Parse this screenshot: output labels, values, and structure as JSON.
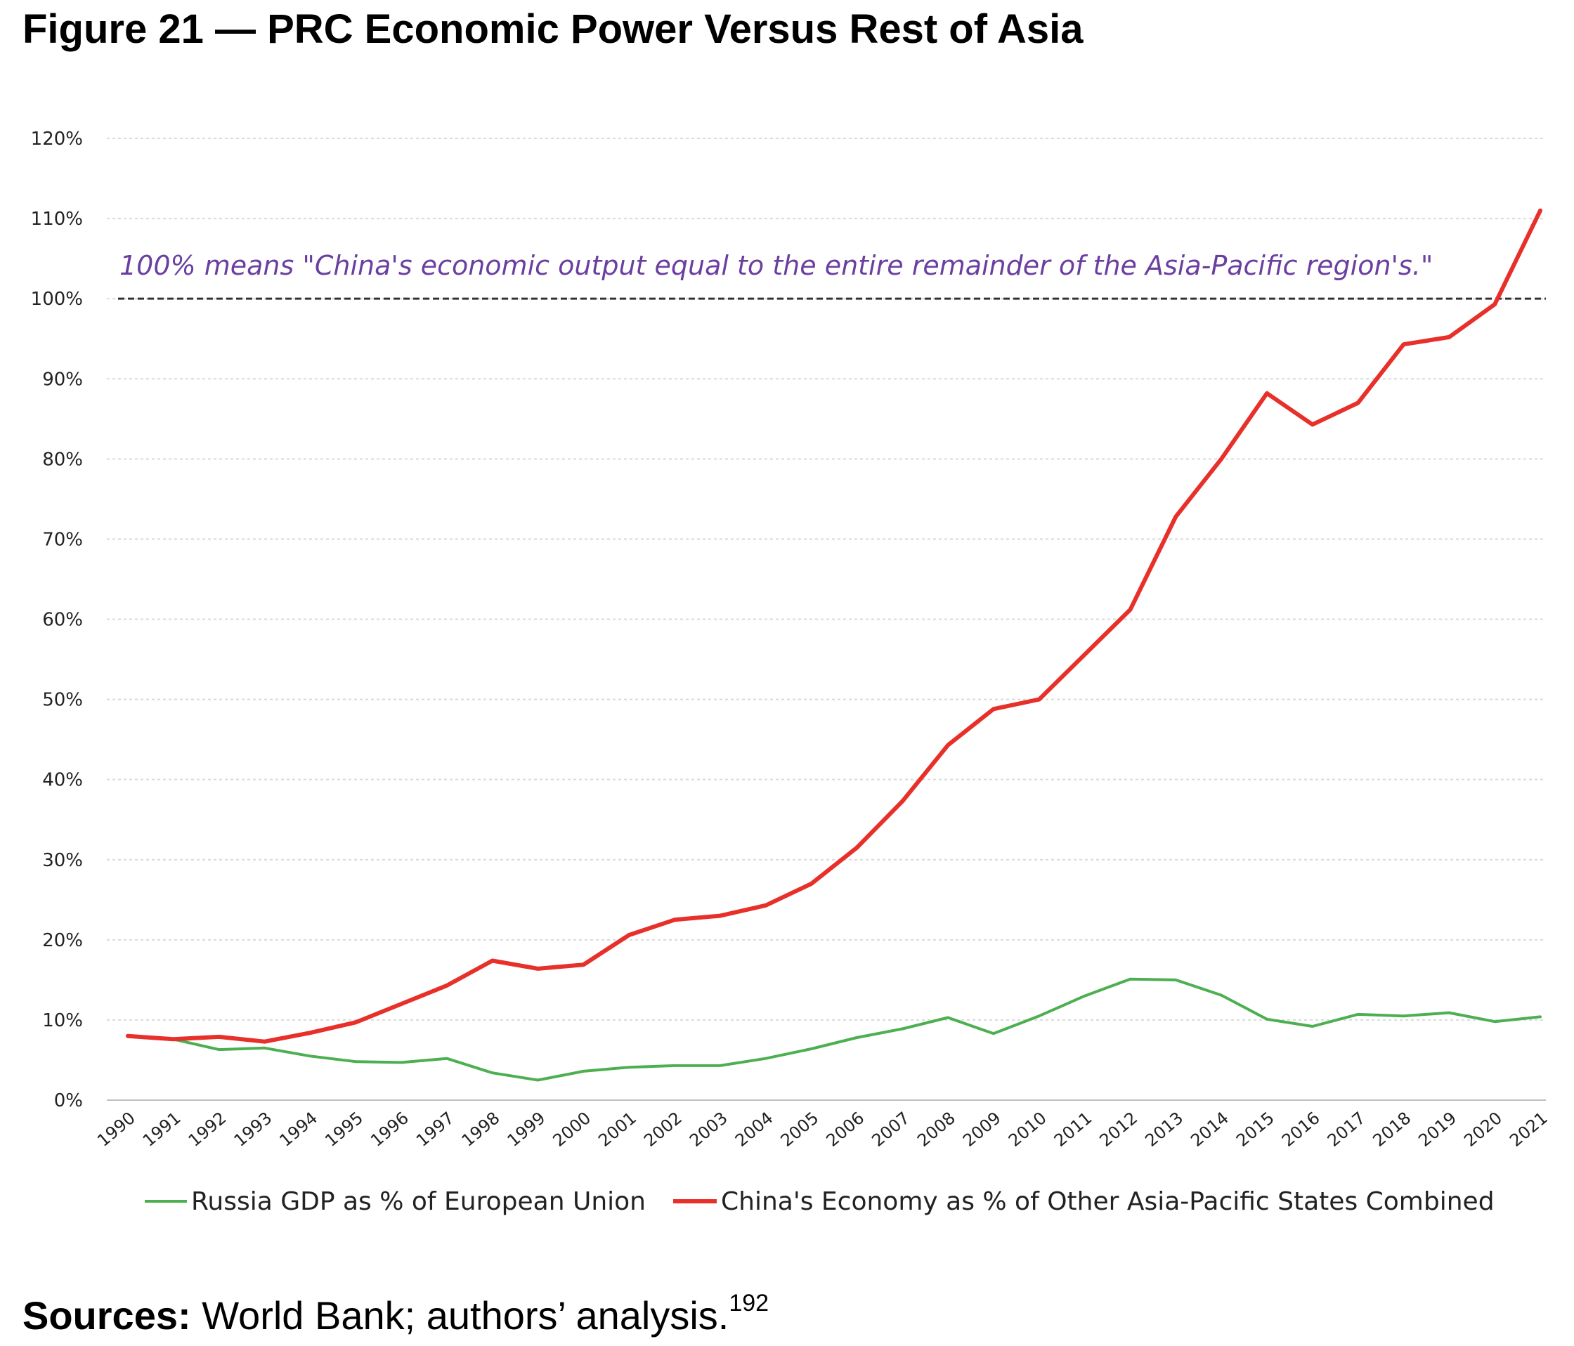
{
  "figure_title": "Figure 21 — PRC Economic Power Versus Rest of Asia",
  "colors": {
    "russia": "#4caf50",
    "china": "#e8302a",
    "annotation": "#6b3fa0",
    "reference_line": "#333333",
    "grid": "#d9d9d9"
  },
  "chart_data": {
    "type": "line",
    "title": "",
    "xlabel": "",
    "ylabel": "",
    "ylim": [
      0,
      120
    ],
    "y_ticks": [
      0,
      10,
      20,
      30,
      40,
      50,
      60,
      70,
      80,
      90,
      100,
      110,
      120
    ],
    "y_tick_labels": [
      "0%",
      "10%",
      "20%",
      "30%",
      "40%",
      "50%",
      "60%",
      "70%",
      "80%",
      "90%",
      "100%",
      "110%",
      "120%"
    ],
    "x": [
      "1990",
      "1991",
      "1992",
      "1993",
      "1994",
      "1995",
      "1996",
      "1997",
      "1998",
      "1999",
      "2000",
      "2001",
      "2002",
      "2003",
      "2004",
      "2005",
      "2006",
      "2007",
      "2008",
      "2009",
      "2010",
      "2011",
      "2012",
      "2013",
      "2014",
      "2015",
      "2016",
      "2017",
      "2018",
      "2019",
      "2020",
      "2021"
    ],
    "grid": "horizontal dotted",
    "legend_position": "bottom",
    "reference_line": {
      "y": 100,
      "style": "dashed"
    },
    "annotation": "100%  means \"China's economic output equal to the entire remainder of the Asia-Pacific region's.\"",
    "series": [
      {
        "name": "Russia GDP as % of European Union",
        "color_key": "russia",
        "values": [
          8.0,
          7.6,
          6.3,
          6.5,
          5.5,
          4.8,
          4.7,
          5.2,
          3.4,
          2.5,
          3.6,
          4.1,
          4.3,
          4.3,
          5.2,
          6.4,
          7.8,
          8.9,
          10.3,
          8.3,
          10.5,
          13.0,
          15.1,
          15.0,
          13.1,
          10.1,
          9.2,
          10.7,
          10.5,
          10.9,
          9.8,
          10.4
        ]
      },
      {
        "name": "China's Economy as % of Other Asia-Pacific States Combined",
        "color_key": "china",
        "values": [
          8.0,
          7.6,
          7.9,
          7.3,
          8.4,
          9.7,
          12.0,
          14.3,
          17.4,
          16.4,
          16.9,
          20.6,
          22.5,
          23.0,
          24.3,
          27.0,
          31.5,
          37.3,
          44.3,
          48.8,
          50.0,
          55.6,
          61.2,
          72.8,
          80.0,
          88.2,
          84.3,
          87.0,
          94.3,
          95.2,
          99.3,
          111.0
        ]
      }
    ]
  },
  "sources": {
    "label": "Sources:",
    "text": " World Bank; authors’ analysis.",
    "footnote": "192"
  }
}
